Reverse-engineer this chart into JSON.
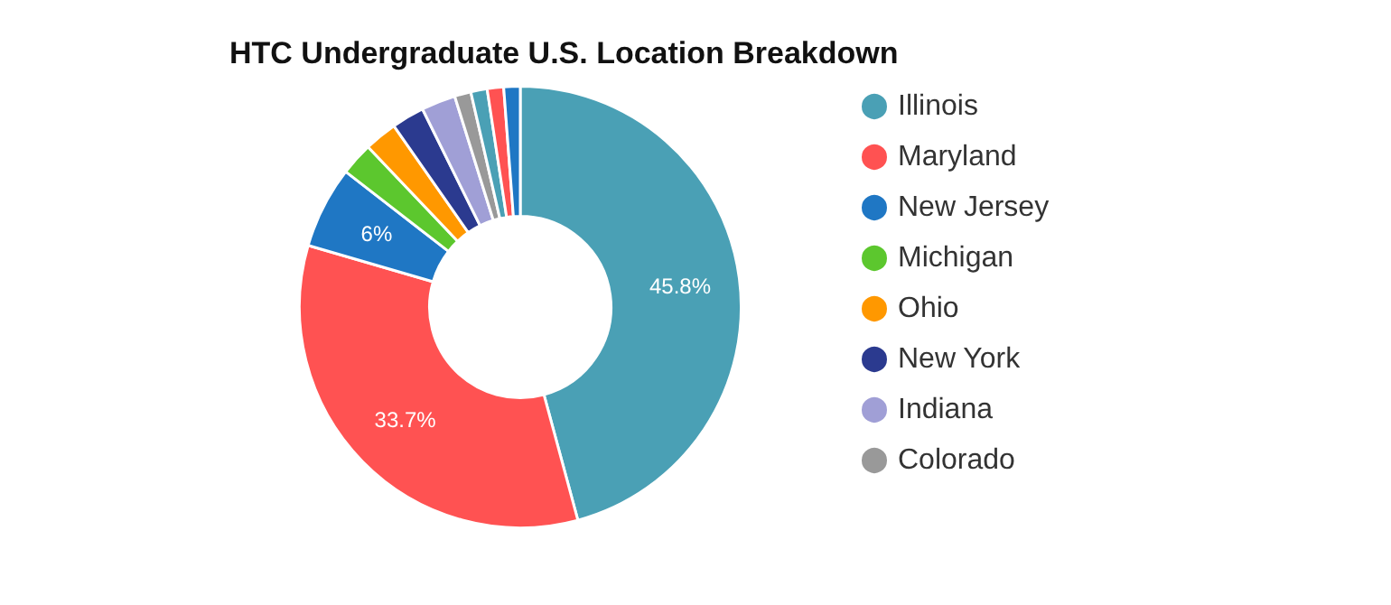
{
  "chart_data": {
    "type": "donut",
    "title": "HTC Undergraduate U.S. Location Breakdown",
    "categories": [
      "Illinois",
      "Maryland",
      "New Jersey",
      "Michigan",
      "Ohio",
      "New York",
      "Indiana",
      "Colorado",
      null,
      null,
      null
    ],
    "values": [
      45.8,
      33.7,
      6,
      2.4,
      2.4,
      2.4,
      2.5,
      1.2,
      1.2,
      1.2,
      1.2
    ],
    "colors": [
      "#4aa0b5",
      "#ff5252",
      "#1f77c4",
      "#5cc72e",
      "#ff9800",
      "#2b3a8f",
      "#a09fd6",
      "#999999",
      "#4aa0b5",
      "#ff5252",
      "#1f77c4"
    ],
    "value_labels": [
      "45.8%",
      "33.7%",
      "6%",
      null,
      null,
      null,
      null,
      null,
      null,
      null,
      null
    ],
    "legend": "right"
  }
}
